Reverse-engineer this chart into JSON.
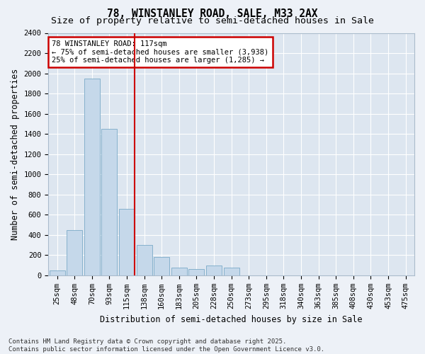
{
  "title": "78, WINSTANLEY ROAD, SALE, M33 2AX",
  "subtitle": "Size of property relative to semi-detached houses in Sale",
  "xlabel": "Distribution of semi-detached houses by size in Sale",
  "ylabel": "Number of semi-detached properties",
  "categories": [
    "25sqm",
    "48sqm",
    "70sqm",
    "93sqm",
    "115sqm",
    "138sqm",
    "160sqm",
    "183sqm",
    "205sqm",
    "228sqm",
    "250sqm",
    "273sqm",
    "295sqm",
    "318sqm",
    "340sqm",
    "363sqm",
    "385sqm",
    "408sqm",
    "430sqm",
    "453sqm",
    "475sqm"
  ],
  "values": [
    50,
    450,
    1950,
    1450,
    660,
    300,
    185,
    80,
    60,
    100,
    75,
    0,
    0,
    0,
    0,
    0,
    0,
    0,
    0,
    0,
    0
  ],
  "bar_color": "#c5d8ea",
  "bar_edge_color": "#7aaac8",
  "property_line_color": "#cc0000",
  "property_line_idx": 4,
  "annotation_text": "78 WINSTANLEY ROAD: 117sqm\n← 75% of semi-detached houses are smaller (3,938)\n25% of semi-detached houses are larger (1,285) →",
  "annotation_box_edgecolor": "#cc0000",
  "ylim": [
    0,
    2400
  ],
  "yticks": [
    0,
    200,
    400,
    600,
    800,
    1000,
    1200,
    1400,
    1600,
    1800,
    2000,
    2200,
    2400
  ],
  "footer": "Contains HM Land Registry data © Crown copyright and database right 2025.\nContains public sector information licensed under the Open Government Licence v3.0.",
  "bg_color": "#edf1f7",
  "plot_bg_color": "#dde6f0",
  "grid_color": "#ffffff",
  "title_fontsize": 10.5,
  "subtitle_fontsize": 9.5,
  "axis_label_fontsize": 8.5,
  "tick_fontsize": 7.5,
  "annot_fontsize": 7.5,
  "footer_fontsize": 6.5
}
